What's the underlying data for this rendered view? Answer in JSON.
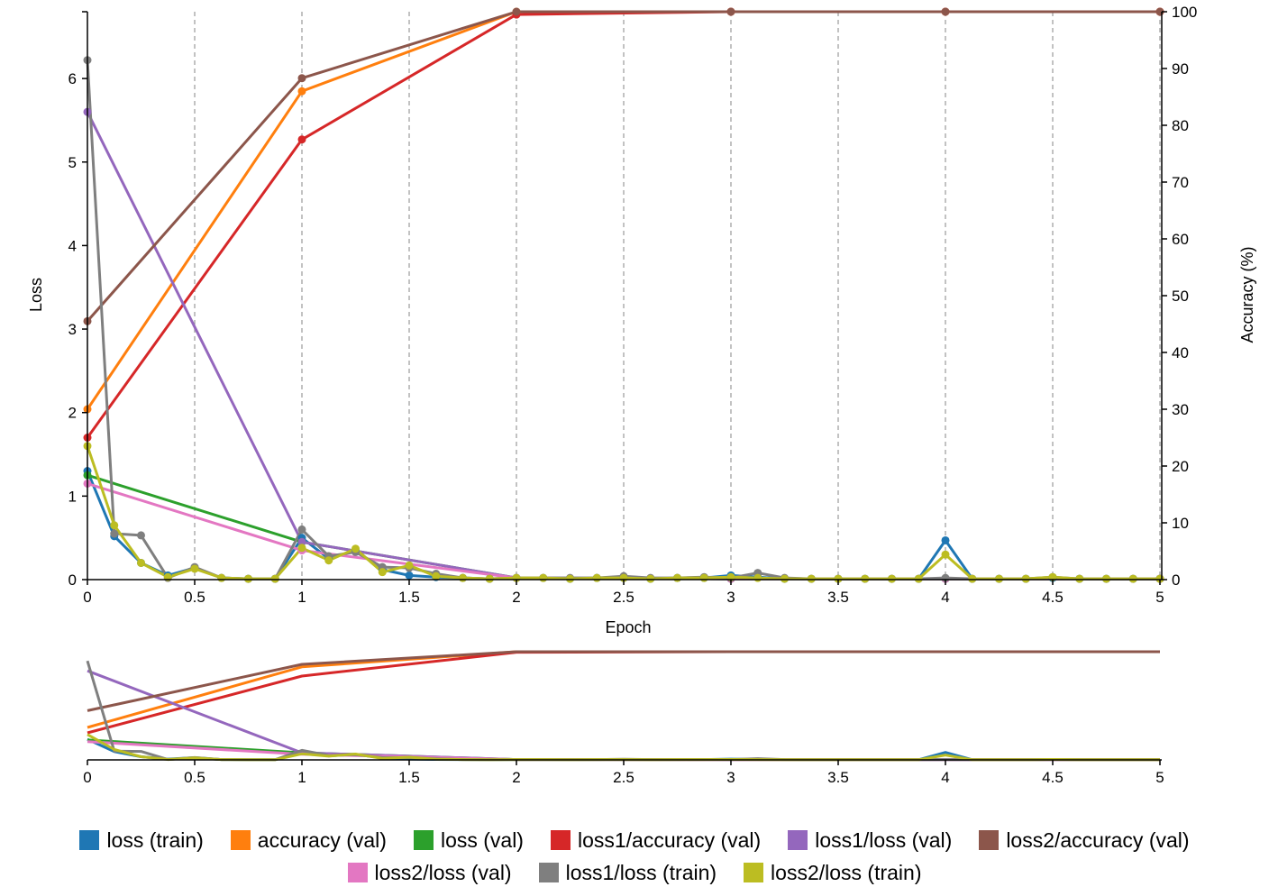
{
  "chart_data": {
    "type": "line",
    "xlabel": "Epoch",
    "ylabel_left": "Loss",
    "ylabel_right": "Accuracy (%)",
    "xlim": [
      0,
      5
    ],
    "ylim_left": [
      0,
      6.8
    ],
    "ylim_right": [
      0,
      100
    ],
    "x_ticks": [
      "0",
      "0.5",
      "1",
      "1.5",
      "2",
      "2.5",
      "3",
      "3.5",
      "4",
      "4.5",
      "5"
    ],
    "x_tick_values": [
      0,
      0.5,
      1,
      1.5,
      2,
      2.5,
      3,
      3.5,
      4,
      4.5,
      5
    ],
    "y_left_ticks": [
      "0",
      "1",
      "2",
      "3",
      "4",
      "5",
      "6"
    ],
    "y_left_tick_values": [
      0,
      1,
      2,
      3,
      4,
      5,
      6
    ],
    "y_right_ticks": [
      "0",
      "10",
      "20",
      "30",
      "40",
      "50",
      "60",
      "70",
      "80",
      "90",
      "100"
    ],
    "y_right_tick_values": [
      0,
      10,
      20,
      30,
      40,
      50,
      60,
      70,
      80,
      90,
      100
    ],
    "grid": "vertical dashed at x ticks",
    "legend_placement": "bottom",
    "series": [
      {
        "name": "loss (train)",
        "color": "#1f77b4",
        "axis": "left",
        "x": [
          0,
          0.125,
          0.25,
          0.375,
          0.5,
          0.625,
          0.75,
          0.875,
          1,
          1.125,
          1.25,
          1.375,
          1.5,
          1.625,
          1.75,
          1.875,
          2,
          2.125,
          2.25,
          2.375,
          2.5,
          2.625,
          2.75,
          2.875,
          3,
          3.125,
          3.25,
          3.375,
          3.5,
          3.625,
          3.75,
          3.875,
          4,
          4.125,
          4.25,
          4.375,
          4.5,
          4.625,
          4.75,
          4.875,
          5
        ],
        "y": [
          1.3,
          0.52,
          0.2,
          0.05,
          0.14,
          0.02,
          0.01,
          0.01,
          0.5,
          0.25,
          0.35,
          0.12,
          0.05,
          0.03,
          0.02,
          0.01,
          0.02,
          0.02,
          0.01,
          0.02,
          0.02,
          0.01,
          0.02,
          0.02,
          0.05,
          0.03,
          0.01,
          0.01,
          0.01,
          0.01,
          0.01,
          0.01,
          0.47,
          0.01,
          0.01,
          0.01,
          0.02,
          0.01,
          0.01,
          0.01,
          0.01
        ]
      },
      {
        "name": "accuracy (val)",
        "color": "#ff7f0e",
        "axis": "right",
        "x": [
          0,
          1,
          2,
          3,
          4,
          5
        ],
        "y": [
          30,
          86,
          100,
          100,
          100,
          100
        ]
      },
      {
        "name": "loss (val)",
        "color": "#2ca02c",
        "axis": "left",
        "x": [
          0,
          1,
          2,
          3,
          4,
          5
        ],
        "y": [
          1.25,
          0.45,
          0.02,
          0.01,
          0.01,
          0.01
        ]
      },
      {
        "name": "loss1/accuracy (val)",
        "color": "#d62728",
        "axis": "right",
        "x": [
          0,
          1,
          2,
          3,
          4,
          5
        ],
        "y": [
          25,
          77.5,
          99.5,
          100,
          100,
          100
        ]
      },
      {
        "name": "loss1/loss (val)",
        "color": "#9467bd",
        "axis": "left",
        "x": [
          0,
          1,
          2,
          3,
          4,
          5
        ],
        "y": [
          5.6,
          0.45,
          0.02,
          0.01,
          0.01,
          0.01
        ]
      },
      {
        "name": "loss2/accuracy (val)",
        "color": "#8c564b",
        "axis": "right",
        "x": [
          0,
          1,
          2,
          3,
          4,
          5
        ],
        "y": [
          45.5,
          88.3,
          100,
          100,
          100,
          100
        ]
      },
      {
        "name": "loss2/loss (val)",
        "color": "#e377c2",
        "axis": "left",
        "x": [
          0,
          1,
          2,
          3,
          4,
          5
        ],
        "y": [
          1.15,
          0.35,
          0.02,
          0.01,
          0.01,
          0.01
        ]
      },
      {
        "name": "loss1/loss (train)",
        "color": "#7f7f7f",
        "axis": "left",
        "x": [
          0,
          0.125,
          0.25,
          0.375,
          0.5,
          0.625,
          0.75,
          0.875,
          1,
          1.125,
          1.25,
          1.375,
          1.5,
          1.625,
          1.75,
          1.875,
          2,
          2.125,
          2.25,
          2.375,
          2.5,
          2.625,
          2.75,
          2.875,
          3,
          3.125,
          3.25,
          3.375,
          3.5,
          3.625,
          3.75,
          3.875,
          4,
          4.125,
          4.25,
          4.375,
          4.5,
          4.625,
          4.75,
          4.875,
          5
        ],
        "y": [
          6.22,
          0.55,
          0.53,
          0.02,
          0.15,
          0.02,
          0.01,
          0.01,
          0.6,
          0.28,
          0.33,
          0.15,
          0.14,
          0.07,
          0.02,
          0.01,
          0.02,
          0.02,
          0.02,
          0.02,
          0.04,
          0.02,
          0.02,
          0.03,
          0.02,
          0.08,
          0.02,
          0.01,
          0.01,
          0.01,
          0.01,
          0.01,
          0.02,
          0.01,
          0.01,
          0.01,
          0.03,
          0.01,
          0.01,
          0.01,
          0.01
        ]
      },
      {
        "name": "loss2/loss (train)",
        "color": "#bcbd22",
        "axis": "left",
        "x": [
          0,
          0.125,
          0.25,
          0.375,
          0.5,
          0.625,
          0.75,
          0.875,
          1,
          1.125,
          1.25,
          1.375,
          1.5,
          1.625,
          1.75,
          1.875,
          2,
          2.125,
          2.25,
          2.375,
          2.5,
          2.625,
          2.75,
          2.875,
          3,
          3.125,
          3.25,
          3.375,
          3.5,
          3.625,
          3.75,
          3.875,
          4,
          4.125,
          4.25,
          4.375,
          4.5,
          4.625,
          4.75,
          4.875,
          5
        ],
        "y": [
          1.6,
          0.65,
          0.2,
          0.03,
          0.13,
          0.02,
          0.01,
          0.01,
          0.38,
          0.23,
          0.37,
          0.09,
          0.17,
          0.04,
          0.02,
          0.01,
          0.02,
          0.02,
          0.01,
          0.02,
          0.02,
          0.01,
          0.02,
          0.02,
          0.03,
          0.02,
          0.01,
          0.01,
          0.01,
          0.01,
          0.01,
          0.01,
          0.3,
          0.01,
          0.01,
          0.01,
          0.03,
          0.01,
          0.01,
          0.01,
          0.01
        ]
      }
    ]
  }
}
